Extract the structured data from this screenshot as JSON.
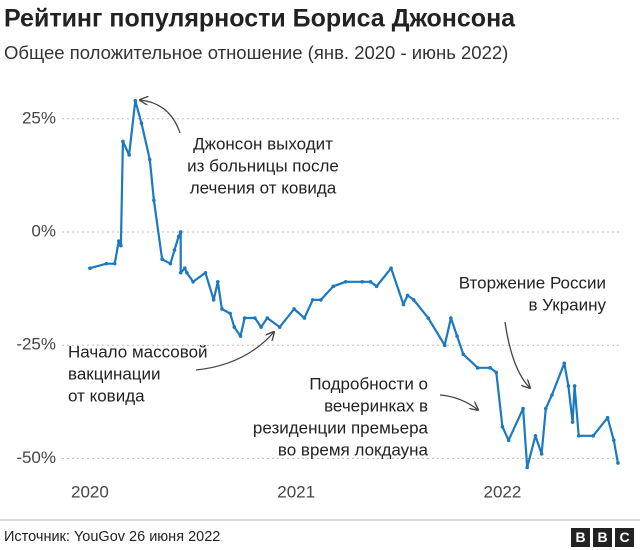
{
  "chart_data": {
    "type": "line",
    "title": "Рейтинг популярности Бориса Джонсона",
    "subtitle": "Общее положительное отношение (янв. 2020 - июнь 2022)",
    "source": "Источник: YouGov 26 июня 2022",
    "logo": [
      "B",
      "B",
      "C"
    ],
    "annotations": [
      [
        "Джонсон выходит",
        "из больницы после",
        "лечения от ковида"
      ],
      [
        "Начало массовой",
        "вакцинации",
        "от ковида"
      ],
      [
        "Вторжение России",
        "в Украину"
      ],
      [
        "Подробности о",
        "вечеринках в",
        "резиденции премьера",
        "во время локдауна"
      ]
    ],
    "color": "#1c79c0",
    "grid": true,
    "xlim": [
      2019.85,
      2022.57
    ],
    "xticks": [
      2020,
      2021,
      2022
    ],
    "ylim": [
      -53,
      31
    ],
    "yticks": [
      {
        "value": 25,
        "label": "25%"
      },
      {
        "value": 0,
        "label": "0%"
      },
      {
        "value": -25,
        "label": "-25%"
      },
      {
        "value": -50,
        "label": "-50%"
      }
    ],
    "x": [
      2020.0,
      2020.08,
      2020.12,
      2020.14,
      2020.15,
      2020.16,
      2020.19,
      2020.22,
      2020.25,
      2020.29,
      2020.31,
      2020.35,
      2020.39,
      2020.41,
      2020.43,
      2020.44,
      2020.44,
      2020.46,
      2020.47,
      2020.5,
      2020.56,
      2020.6,
      2020.62,
      2020.64,
      2020.68,
      2020.7,
      2020.73,
      2020.75,
      2020.8,
      2020.83,
      2020.86,
      2020.92,
      2020.99,
      2021.04,
      2021.08,
      2021.12,
      2021.18,
      2021.24,
      2021.32,
      2021.36,
      2021.39,
      2021.46,
      2021.52,
      2021.54,
      2021.57,
      2021.64,
      2021.72,
      2021.75,
      2021.78,
      2021.81,
      2021.88,
      2021.94,
      2021.97,
      2022.0,
      2022.03,
      2022.1,
      2022.12,
      2022.16,
      2022.19,
      2022.21,
      2022.24,
      2022.3,
      2022.32,
      2022.34,
      2022.35,
      2022.37,
      2022.44,
      2022.51,
      2022.54,
      2022.56
    ],
    "values": [
      -8,
      -7,
      -7,
      -2,
      -3,
      20,
      17,
      29,
      24,
      16,
      7,
      -6,
      -7,
      -4,
      -1,
      0,
      -9,
      -8,
      -9,
      -11,
      -9,
      -15,
      -11,
      -17,
      -18,
      -21,
      -23,
      -19,
      -19,
      -21,
      -19,
      -21,
      -17,
      -19,
      -15,
      -15,
      -12,
      -11,
      -11,
      -11,
      -12,
      -8,
      -16,
      -14,
      -15,
      -19,
      -25,
      -19,
      -23,
      -27,
      -30,
      -30,
      -31,
      -43,
      -46,
      -39,
      -52,
      -45,
      -49,
      -39,
      -36,
      -29,
      -34,
      -42,
      -34,
      -45,
      -45,
      -41,
      -46,
      -51
    ]
  }
}
